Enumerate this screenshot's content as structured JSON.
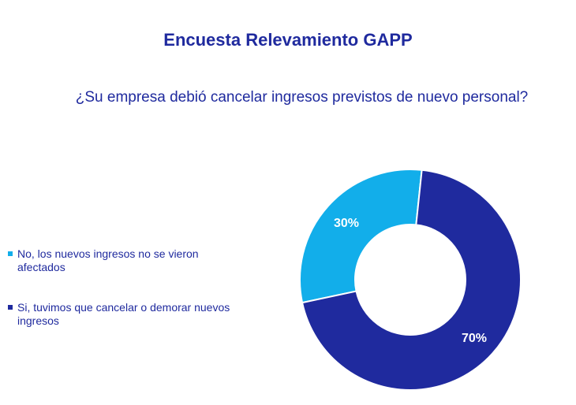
{
  "header": {
    "title": "Encuesta Relevamiento GAPP",
    "question": "¿Su empresa debió cancelar ingresos previstos de nuevo personal?"
  },
  "chart_data": {
    "type": "pie",
    "donut": true,
    "title": "",
    "legend_position": "left",
    "categories": [
      "No, los nuevos ingresos no se vieron afectados",
      "Si, tuvimos que cancelar o demorar nuevos ingresos"
    ],
    "values": [
      30,
      70
    ],
    "data_labels": [
      "30%",
      "70%"
    ],
    "colors": [
      "#12aeea",
      "#1f2a9e"
    ]
  }
}
